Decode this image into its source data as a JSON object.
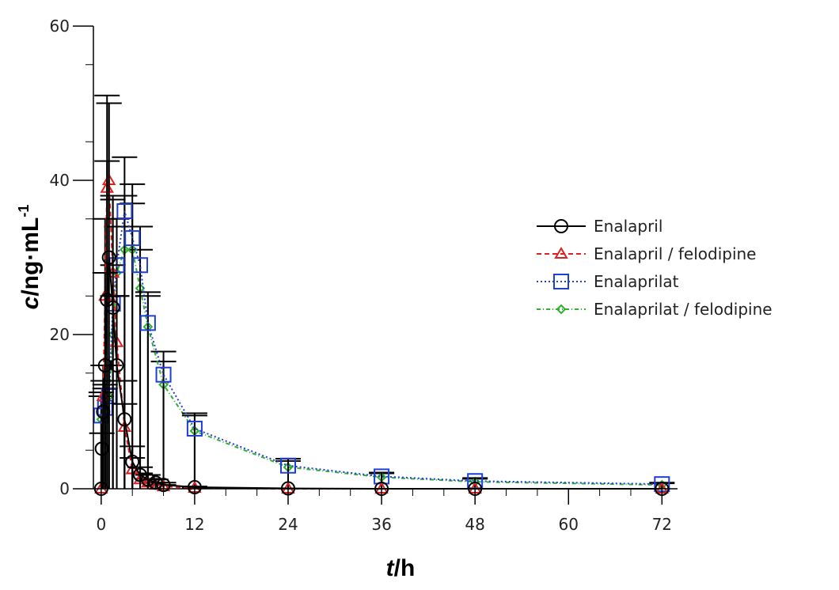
{
  "chart_data": {
    "type": "line",
    "xlabel_italic": "t",
    "xlabel_rest": "/h",
    "ylabel_italic": "c",
    "ylabel_rest": "/ng·mL",
    "ylabel_sup": "-1",
    "xlim": [
      -1,
      74
    ],
    "ylim": [
      0,
      60
    ],
    "xticks": [
      0,
      12,
      24,
      36,
      48,
      60,
      72
    ],
    "yticks": [
      0,
      20,
      40,
      60
    ],
    "grid": false,
    "legend_position": "right",
    "series": [
      {
        "name": "Enalapril",
        "color": "#000000",
        "marker": "circle",
        "dash": "",
        "x": [
          0,
          0.083,
          0.25,
          0.5,
          0.75,
          1,
          1.5,
          2,
          3,
          4,
          5,
          6,
          7,
          8,
          12,
          24,
          36,
          48,
          72
        ],
        "y": [
          0,
          5.2,
          10,
          16,
          24.5,
          30,
          23.5,
          16,
          9,
          3.5,
          1.8,
          1.2,
          0.8,
          0.5,
          0.2,
          0.05,
          0,
          0,
          0
        ],
        "err": [
          0,
          2,
          4,
          12,
          18,
          20,
          14,
          9,
          5,
          2,
          1,
          0.6,
          0.4,
          0.3,
          0.1,
          0,
          0,
          0,
          0
        ]
      },
      {
        "name": "Enalapril / felodipine",
        "color": "#e02020",
        "marker": "triangle",
        "dash": "6,4",
        "x": [
          0,
          0.25,
          0.5,
          0.75,
          1,
          1.5,
          2,
          3,
          4,
          5,
          6,
          7,
          8,
          12,
          24,
          36,
          48,
          72
        ],
        "y": [
          0,
          12,
          25,
          39,
          40,
          28,
          19,
          8,
          2.5,
          1.2,
          0.8,
          0.5,
          0.3,
          0.1,
          0,
          0,
          0,
          0
        ],
        "err": [
          0,
          4,
          10,
          12,
          10,
          10,
          6,
          3,
          1.5,
          0.8,
          0.5,
          0.3,
          0.2,
          0.05,
          0,
          0,
          0,
          0
        ]
      },
      {
        "name": "Enalaprilat",
        "color": "#1f3fd6",
        "marker": "square",
        "dash": "2,3",
        "x": [
          0,
          0.5,
          1,
          1.5,
          2,
          3,
          4,
          5,
          6,
          8,
          12,
          24,
          36,
          48,
          72
        ],
        "y": [
          9.5,
          10.5,
          12,
          24,
          29,
          36,
          32.5,
          29,
          21.5,
          14.8,
          7.8,
          3,
          1.6,
          1,
          0.6
        ],
        "err": [
          3,
          3,
          4,
          5,
          6,
          7,
          7,
          5,
          4,
          3,
          2,
          0.9,
          0.5,
          0.4,
          0.2
        ]
      },
      {
        "name": "Enalaprilat / felodipine",
        "color": "#30b030",
        "marker": "diamond",
        "dash": "5,3,1,3",
        "x": [
          0,
          0.5,
          1,
          1.5,
          2,
          3,
          4,
          5,
          6,
          8,
          12,
          24,
          36,
          48,
          72
        ],
        "y": [
          9,
          10,
          12,
          20,
          28,
          31,
          31,
          26,
          21,
          13.5,
          7.5,
          2.8,
          1.5,
          0.9,
          0.5
        ],
        "err": [
          3,
          3,
          4,
          5,
          6,
          7,
          6,
          5,
          4,
          3,
          2,
          0.8,
          0.5,
          0.4,
          0.2
        ]
      }
    ]
  }
}
